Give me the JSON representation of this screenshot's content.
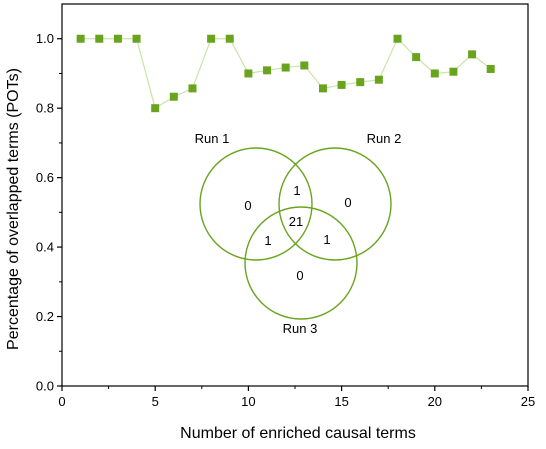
{
  "chart_data": {
    "type": "line",
    "title": "",
    "xlabel": "Number of enriched causal terms",
    "ylabel": "Percentage of overlapped terms (POTs)",
    "xlim": [
      0,
      25
    ],
    "ylim": [
      0,
      1.1
    ],
    "x_ticks": [
      0,
      5,
      10,
      15,
      20,
      25
    ],
    "y_ticks": [
      0.0,
      0.2,
      0.4,
      0.6,
      0.8,
      1.0
    ],
    "x_tick_labels": [
      "0",
      "5",
      "10",
      "15",
      "20",
      "25"
    ],
    "y_tick_labels": [
      "0.0",
      "0.2",
      "0.4",
      "0.6",
      "0.8",
      "1.0"
    ],
    "grid": false,
    "marker": "square",
    "colors": {
      "marker": "#6aa41e",
      "line": "#c7e6a6",
      "venn": "#6aa41e",
      "axis": "#000000"
    },
    "series": [
      {
        "x": [
          1,
          2,
          3,
          4,
          5,
          6,
          7,
          8,
          9,
          10,
          11,
          12,
          13,
          14,
          15,
          16,
          17,
          18,
          19,
          20,
          21,
          22,
          23
        ],
        "y": [
          1.0,
          1.0,
          1.0,
          1.0,
          0.8,
          0.833,
          0.857,
          1.0,
          1.0,
          0.9,
          0.909,
          0.917,
          0.923,
          0.857,
          0.867,
          0.875,
          0.882,
          1.0,
          0.947,
          0.9,
          0.905,
          0.955,
          0.913
        ]
      }
    ],
    "venn": {
      "sets": [
        "Run 1",
        "Run 2",
        "Run 3"
      ],
      "regions": {
        "run1_only": "0",
        "run2_only": "0",
        "run3_only": "0",
        "run1_run2": "1",
        "run1_run3": "1",
        "run2_run3": "1",
        "all_three": "21"
      }
    }
  }
}
